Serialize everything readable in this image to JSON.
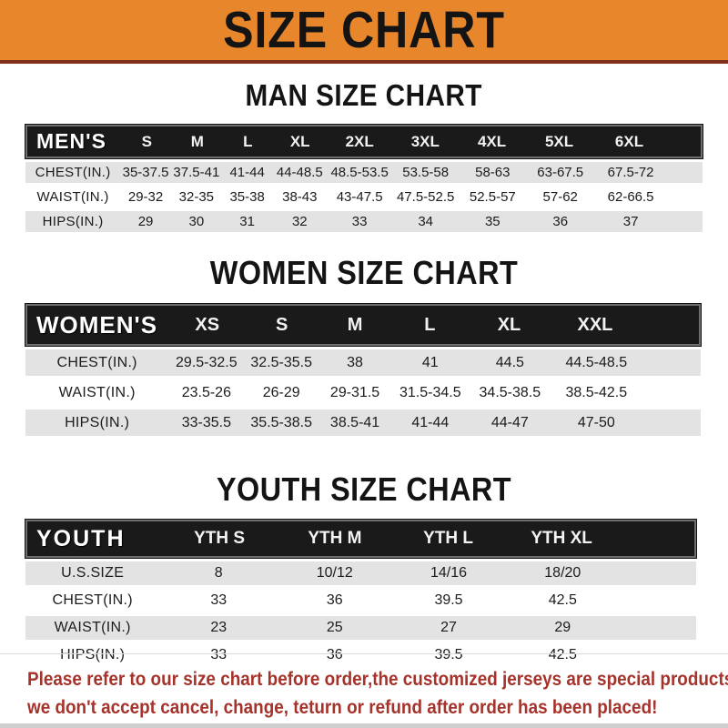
{
  "banner": {
    "title": "SIZE CHART"
  },
  "colors": {
    "banner_orange": "#E8862B",
    "banner_underline": "#82301A",
    "bar_black": "#1A1A1A",
    "row_gray": "#E3E3E3",
    "note_red": "#A5332B"
  },
  "sections": [
    {
      "heading": "MAN SIZE CHART",
      "table": {
        "name": "mens",
        "label": "MEN'S",
        "columns": [
          "S",
          "M",
          "L",
          "XL",
          "2XL",
          "3XL",
          "4XL",
          "5XL",
          "6XL"
        ],
        "rows": [
          {
            "label": "CHEST(IN.)",
            "values": [
              "35-37.5",
              "37.5-41",
              "41-44",
              "44-48.5",
              "48.5-53.5",
              "53.5-58",
              "58-63",
              "63-67.5",
              "67.5-72"
            ]
          },
          {
            "label": "WAIST(IN.)",
            "values": [
              "29-32",
              "32-35",
              "35-38",
              "38-43",
              "43-47.5",
              "47.5-52.5",
              "52.5-57",
              "57-62",
              "62-66.5"
            ]
          },
          {
            "label": "HIPS(IN.)",
            "values": [
              "29",
              "30",
              "31",
              "32",
              "33",
              "34",
              "35",
              "36",
              "37"
            ]
          }
        ]
      }
    },
    {
      "heading": "WOMEN SIZE CHART",
      "table": {
        "name": "womens",
        "label": "WOMEN'S",
        "columns": [
          "XS",
          "S",
          "M",
          "L",
          "XL",
          "XXL"
        ],
        "rows": [
          {
            "label": "CHEST(IN.)",
            "values": [
              "29.5-32.5",
              "32.5-35.5",
              "38",
              "41",
              "44.5",
              "44.5-48.5"
            ]
          },
          {
            "label": "WAIST(IN.)",
            "values": [
              "23.5-26",
              "26-29",
              "29-31.5",
              "31.5-34.5",
              "34.5-38.5",
              "38.5-42.5"
            ]
          },
          {
            "label": "HIPS(IN.)",
            "values": [
              "33-35.5",
              "35.5-38.5",
              "38.5-41",
              "41-44",
              "44-47",
              "47-50"
            ]
          }
        ]
      }
    },
    {
      "heading": "YOUTH SIZE CHART",
      "table": {
        "name": "youth",
        "label": "YOUTH",
        "columns": [
          "YTH S",
          "YTH M",
          "YTH L",
          "YTH XL"
        ],
        "rows": [
          {
            "label": "U.S.SIZE",
            "values": [
              "8",
              "10/12",
              "14/16",
              "18/20"
            ]
          },
          {
            "label": "CHEST(IN.)",
            "values": [
              "33",
              "36",
              "39.5",
              "42.5"
            ]
          },
          {
            "label": "WAIST(IN.)",
            "values": [
              "23",
              "25",
              "27",
              "29"
            ]
          },
          {
            "label": "HIPS(IN.)",
            "values": [
              "33",
              "36",
              "39.5",
              "42.5"
            ]
          }
        ]
      }
    }
  ],
  "footer": {
    "line1": "Please refer to our size chart before order,the customized jerseys are special products,",
    "line2": "we don't accept cancel, change, teturn or refund after order has been placed!"
  }
}
